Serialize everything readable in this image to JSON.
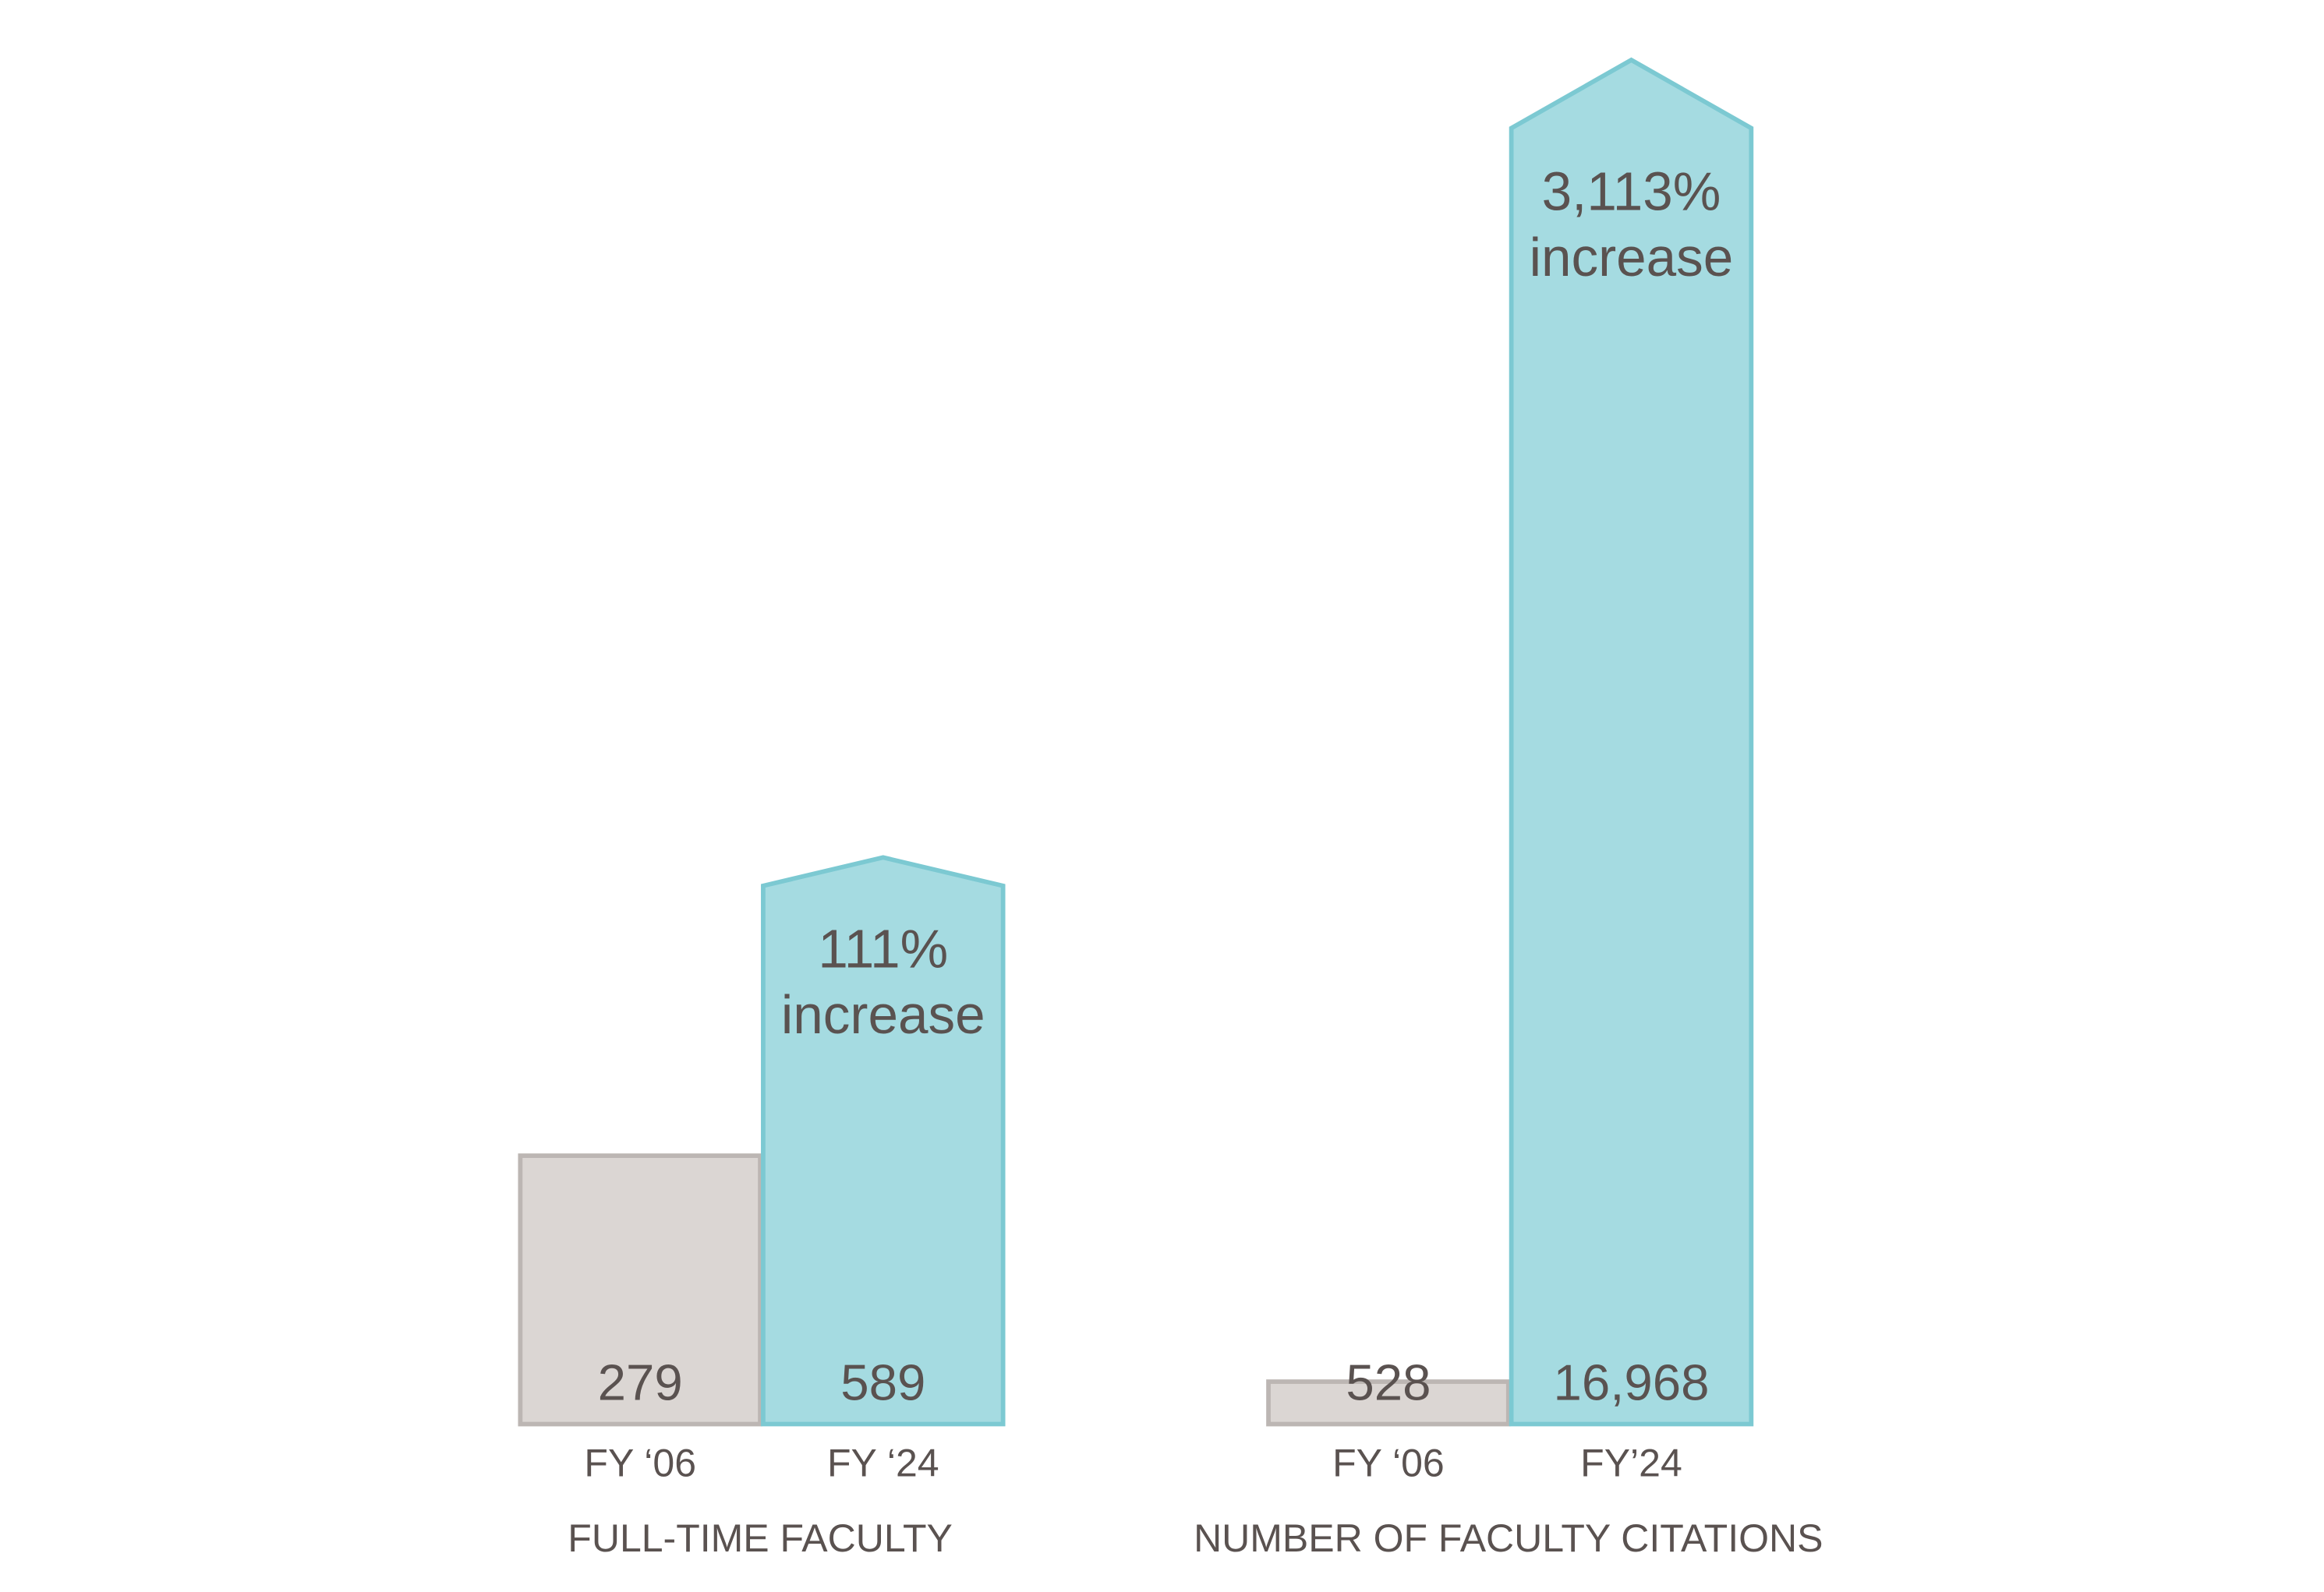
{
  "chart_data": [
    {
      "type": "bar",
      "title": "FULL-TIME FACULTY",
      "categories": [
        "FY ‘06",
        "FY ‘24"
      ],
      "values": [
        279,
        589
      ],
      "colors": [
        "#dbd6d3",
        "#a5dbe1"
      ],
      "stroke_colors": [
        "#bcb6b3",
        "#7cc9d2"
      ],
      "annotation": [
        "111%",
        "increase"
      ]
    },
    {
      "type": "bar",
      "title": "NUMBER OF FACULTY CITATIONS",
      "categories": [
        "FY ‘06",
        "FY’24"
      ],
      "values": [
        528,
        16968
      ],
      "value_labels": [
        "528",
        "16,968"
      ],
      "colors": [
        "#dbd6d3",
        "#a5dbe1"
      ],
      "stroke_colors": [
        "#bcb6b3",
        "#7cc9d2"
      ],
      "annotation": [
        "3,113%",
        "increase"
      ]
    }
  ]
}
